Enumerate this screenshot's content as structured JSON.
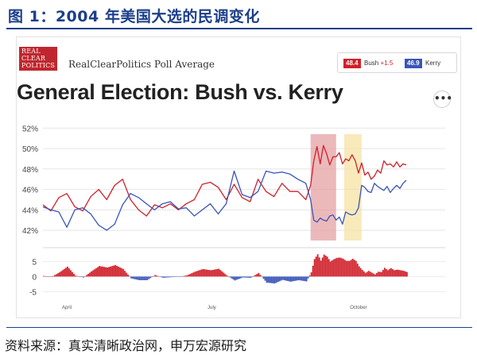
{
  "figure_title": "图 1：2004 年美国大选的民调变化",
  "source_note": "资料来源：真实清晰政治网，申万宏源研究",
  "logo_lines": [
    "REAL",
    "CLEAR",
    "POLITICS"
  ],
  "poll_average_label": "RealClearPolitics Poll Average",
  "legend": {
    "bush_value": "48.4",
    "bush_text": "Bush",
    "bush_spread": "+1.5",
    "kerry_value": "46.9",
    "kerry_text": "Kerry"
  },
  "more_button_glyph": "•••",
  "colors": {
    "bush": "#d0202a",
    "kerry": "#3a55b8",
    "title_blue": "#1d3f8a",
    "highlight_red": "#e6a1a4",
    "highlight_yellow": "#f7e3a6"
  },
  "chart_data": {
    "type": "line",
    "title": "General Election: Bush vs. Kerry",
    "y_ticks": [
      "52%",
      "50%",
      "48%",
      "46%",
      "44%",
      "42%"
    ],
    "ylim": [
      41,
      52.5
    ],
    "x_labels": [
      {
        "label": "April",
        "day": 15
      },
      {
        "label": "July",
        "day": 106
      },
      {
        "label": "October",
        "day": 198
      }
    ],
    "x_range": [
      0,
      230
    ],
    "highlight_ranges": [
      {
        "from": 168,
        "to": 184,
        "color": "highlight_red"
      },
      {
        "from": 189,
        "to": 200,
        "color": "highlight_yellow"
      }
    ],
    "series": [
      {
        "name": "Bush",
        "color": "bush",
        "points": [
          [
            0,
            44.5
          ],
          [
            5,
            43.9
          ],
          [
            10,
            45.2
          ],
          [
            15,
            45.6
          ],
          [
            20,
            44.3
          ],
          [
            25,
            43.9
          ],
          [
            30,
            45.3
          ],
          [
            35,
            46.0
          ],
          [
            40,
            45.0
          ],
          [
            45,
            46.4
          ],
          [
            50,
            47.0
          ],
          [
            55,
            45.0
          ],
          [
            60,
            44.0
          ],
          [
            65,
            43.4
          ],
          [
            70,
            44.5
          ],
          [
            75,
            44.2
          ],
          [
            80,
            44.6
          ],
          [
            85,
            44.0
          ],
          [
            90,
            44.6
          ],
          [
            95,
            45.0
          ],
          [
            100,
            46.5
          ],
          [
            105,
            46.7
          ],
          [
            110,
            46.2
          ],
          [
            115,
            45.0
          ],
          [
            120,
            46.5
          ],
          [
            125,
            45.2
          ],
          [
            130,
            44.8
          ],
          [
            135,
            47.0
          ],
          [
            140,
            45.8
          ],
          [
            145,
            45.3
          ],
          [
            150,
            46.6
          ],
          [
            155,
            45.8
          ],
          [
            160,
            45.8
          ],
          [
            165,
            45.0
          ],
          [
            168,
            46.4
          ],
          [
            170,
            48.8
          ],
          [
            172,
            50.2
          ],
          [
            174,
            48.5
          ],
          [
            176,
            50.3
          ],
          [
            178,
            49.5
          ],
          [
            180,
            48.4
          ],
          [
            182,
            49.2
          ],
          [
            184,
            49.2
          ],
          [
            186,
            49.6
          ],
          [
            188,
            48.5
          ],
          [
            190,
            49.0
          ],
          [
            192,
            48.8
          ],
          [
            194,
            49.4
          ],
          [
            196,
            48.8
          ],
          [
            198,
            47.6
          ],
          [
            200,
            48.6
          ],
          [
            202,
            47.4
          ],
          [
            204,
            47.7
          ],
          [
            206,
            47.0
          ],
          [
            208,
            47.3
          ],
          [
            210,
            47.9
          ],
          [
            212,
            47.6
          ],
          [
            214,
            48.8
          ],
          [
            216,
            48.4
          ],
          [
            218,
            48.5
          ],
          [
            220,
            48.2
          ],
          [
            222,
            48.7
          ],
          [
            224,
            48.2
          ],
          [
            226,
            48.5
          ],
          [
            228,
            48.4
          ]
        ]
      },
      {
        "name": "Kerry",
        "color": "kerry",
        "points": [
          [
            0,
            44.3
          ],
          [
            5,
            44.0
          ],
          [
            10,
            43.8
          ],
          [
            15,
            42.3
          ],
          [
            20,
            44.0
          ],
          [
            25,
            44.2
          ],
          [
            30,
            43.6
          ],
          [
            35,
            42.5
          ],
          [
            40,
            42.0
          ],
          [
            45,
            42.6
          ],
          [
            50,
            44.5
          ],
          [
            55,
            45.6
          ],
          [
            60,
            45.2
          ],
          [
            65,
            44.6
          ],
          [
            70,
            44.0
          ],
          [
            75,
            44.6
          ],
          [
            80,
            44.8
          ],
          [
            85,
            44.1
          ],
          [
            90,
            44.2
          ],
          [
            95,
            43.4
          ],
          [
            100,
            44.0
          ],
          [
            105,
            44.6
          ],
          [
            110,
            43.6
          ],
          [
            115,
            44.6
          ],
          [
            120,
            47.8
          ],
          [
            125,
            45.5
          ],
          [
            130,
            45.2
          ],
          [
            135,
            45.8
          ],
          [
            140,
            47.8
          ],
          [
            145,
            47.6
          ],
          [
            150,
            47.7
          ],
          [
            155,
            47.5
          ],
          [
            160,
            47.0
          ],
          [
            165,
            46.6
          ],
          [
            168,
            45.0
          ],
          [
            170,
            43.0
          ],
          [
            172,
            42.8
          ],
          [
            174,
            43.2
          ],
          [
            176,
            43.0
          ],
          [
            178,
            42.9
          ],
          [
            180,
            43.4
          ],
          [
            182,
            43.5
          ],
          [
            184,
            43.0
          ],
          [
            186,
            43.3
          ],
          [
            188,
            42.6
          ],
          [
            190,
            43.8
          ],
          [
            192,
            43.6
          ],
          [
            194,
            43.5
          ],
          [
            196,
            43.6
          ],
          [
            198,
            44.2
          ],
          [
            200,
            46.4
          ],
          [
            202,
            46.2
          ],
          [
            204,
            45.8
          ],
          [
            206,
            45.7
          ],
          [
            208,
            46.6
          ],
          [
            210,
            46.3
          ],
          [
            212,
            46.1
          ],
          [
            214,
            45.9
          ],
          [
            216,
            46.3
          ],
          [
            218,
            45.7
          ],
          [
            220,
            46.1
          ],
          [
            222,
            46.4
          ],
          [
            224,
            46.1
          ],
          [
            226,
            46.6
          ],
          [
            228,
            46.9
          ]
        ]
      }
    ],
    "spread_panel": {
      "y_ticks": [
        "5",
        "0",
        "-5"
      ],
      "ylim": [
        -7,
        8
      ]
    }
  }
}
